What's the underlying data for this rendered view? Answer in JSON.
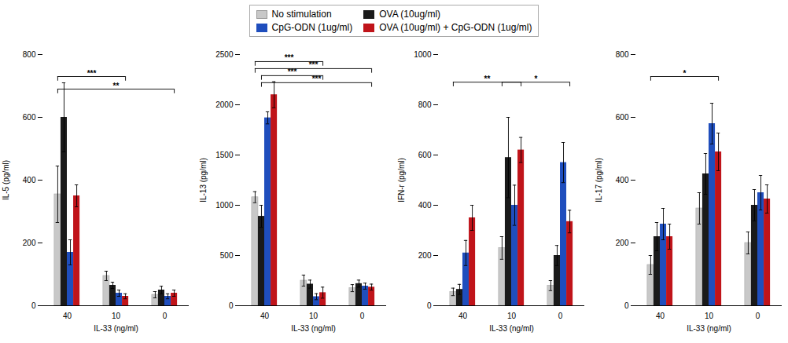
{
  "chart_data": [
    {
      "type": "bar",
      "xlabel": "IL-33 (ng/ml)",
      "ylabel": "IL-5 (pg/ml)",
      "categories": [
        "40",
        "10",
        "0"
      ],
      "series": [
        {
          "name": "No stimulation",
          "color": "#c8c8c8",
          "values": [
            355,
            95,
            35
          ],
          "errors": [
            90,
            15,
            10
          ]
        },
        {
          "name": "OVA (10ug/ml)",
          "color": "#1a1a1a",
          "values": [
            600,
            65,
            50
          ],
          "errors": [
            110,
            10,
            12
          ]
        },
        {
          "name": "CpG-ODN (1ug/ml)",
          "color": "#1f4ebd",
          "values": [
            170,
            40,
            30
          ],
          "errors": [
            40,
            10,
            8
          ]
        },
        {
          "name": "OVA (10ug/ml) + CpG-ODN (1ug/ml)",
          "color": "#c0141a",
          "values": [
            350,
            30,
            40
          ],
          "errors": [
            35,
            8,
            10
          ]
        }
      ],
      "ylim": [
        0,
        800
      ],
      "yticks": [
        0,
        200,
        400,
        600,
        800
      ],
      "legend": "upper center",
      "annotations": [
        {
          "text": "***",
          "y": 730,
          "from": {
            "category": "40",
            "series": "No stimulation"
          },
          "to": {
            "category": "10",
            "series": "OVA (10ug/ml) + CpG-ODN (1ug/ml)"
          }
        },
        {
          "text": "**",
          "y": 690,
          "from": {
            "category": "40",
            "series": "No stimulation"
          },
          "to": {
            "category": "0",
            "series": "OVA (10ug/ml) + CpG-ODN (1ug/ml)"
          }
        }
      ]
    },
    {
      "type": "bar",
      "xlabel": "IL-33 (ng/ml)",
      "ylabel": "IL-13 (pg/ml)",
      "categories": [
        "40",
        "10",
        "0"
      ],
      "series": [
        {
          "name": "No stimulation",
          "color": "#c8c8c8",
          "values": [
            1080,
            250,
            175
          ],
          "errors": [
            55,
            55,
            35
          ]
        },
        {
          "name": "OVA (10ug/ml)",
          "color": "#1a1a1a",
          "values": [
            890,
            215,
            220
          ],
          "errors": [
            110,
            40,
            35
          ]
        },
        {
          "name": "CpG-ODN (1ug/ml)",
          "color": "#1f4ebd",
          "values": [
            1870,
            90,
            195
          ],
          "errors": [
            60,
            30,
            30
          ]
        },
        {
          "name": "OVA (10ug/ml) + CpG-ODN (1ug/ml)",
          "color": "#c0141a",
          "values": [
            2100,
            130,
            185
          ],
          "errors": [
            130,
            55,
            30
          ]
        }
      ],
      "ylim": [
        0,
        2500
      ],
      "yticks": [
        0,
        500,
        1000,
        1500,
        2000,
        2500
      ],
      "legend": "upper center",
      "annotations": [
        {
          "text": "***",
          "y": 2430,
          "from": {
            "category": "40",
            "series": "No stimulation"
          },
          "to": {
            "category": "10",
            "series": "OVA (10ug/ml) + CpG-ODN (1ug/ml)"
          }
        },
        {
          "text": "***",
          "y": 2360,
          "from": {
            "category": "40",
            "series": "No stimulation"
          },
          "to": {
            "category": "0",
            "series": "OVA (10ug/ml) + CpG-ODN (1ug/ml)"
          }
        },
        {
          "text": "***",
          "y": 2290,
          "from": {
            "category": "40",
            "series": "OVA (10ug/ml)"
          },
          "to": {
            "category": "10",
            "series": "OVA (10ug/ml) + CpG-ODN (1ug/ml)"
          }
        },
        {
          "text": "***",
          "y": 2220,
          "from": {
            "category": "40",
            "series": "OVA (10ug/ml)"
          },
          "to": {
            "category": "0",
            "series": "OVA (10ug/ml) + CpG-ODN (1ug/ml)"
          }
        }
      ]
    },
    {
      "type": "bar",
      "xlabel": "IL-33 (ng/ml)",
      "ylabel": "IFN-r (pg/ml)",
      "categories": [
        "40",
        "10",
        "0"
      ],
      "series": [
        {
          "name": "No stimulation",
          "color": "#c8c8c8",
          "values": [
            55,
            230,
            80
          ],
          "errors": [
            15,
            45,
            20
          ]
        },
        {
          "name": "OVA (10ug/ml)",
          "color": "#1a1a1a",
          "values": [
            65,
            590,
            200
          ],
          "errors": [
            20,
            160,
            40
          ]
        },
        {
          "name": "CpG-ODN (1ug/ml)",
          "color": "#1f4ebd",
          "values": [
            210,
            400,
            570
          ],
          "errors": [
            50,
            80,
            80
          ]
        },
        {
          "name": "OVA (10ug/ml) + CpG-ODN (1ug/ml)",
          "color": "#c0141a",
          "values": [
            350,
            620,
            335
          ],
          "errors": [
            50,
            50,
            45
          ]
        }
      ],
      "ylim": [
        0,
        1000
      ],
      "yticks": [
        0,
        200,
        400,
        600,
        800,
        1000
      ],
      "legend": "upper center",
      "annotations": [
        {
          "text": "**",
          "y": 890,
          "from": {
            "category": "40",
            "series": "No stimulation"
          },
          "to": {
            "category": "10",
            "series": "OVA (10ug/ml) + CpG-ODN (1ug/ml)"
          }
        },
        {
          "text": "*",
          "y": 890,
          "from": {
            "category": "10",
            "series": "No stimulation"
          },
          "to": {
            "category": "0",
            "series": "OVA (10ug/ml) + CpG-ODN (1ug/ml)"
          }
        }
      ]
    },
    {
      "type": "bar",
      "xlabel": "IL-33 (ng/ml)",
      "ylabel": "IL-17 (pg/ml)",
      "categories": [
        "40",
        "10",
        "0"
      ],
      "series": [
        {
          "name": "No stimulation",
          "color": "#c8c8c8",
          "values": [
            130,
            310,
            200
          ],
          "errors": [
            30,
            50,
            35
          ]
        },
        {
          "name": "OVA (10ug/ml)",
          "color": "#1a1a1a",
          "values": [
            220,
            420,
            320
          ],
          "errors": [
            45,
            65,
            50
          ]
        },
        {
          "name": "CpG-ODN (1ug/ml)",
          "color": "#1f4ebd",
          "values": [
            260,
            580,
            360
          ],
          "errors": [
            50,
            65,
            55
          ]
        },
        {
          "name": "OVA (10ug/ml) + CpG-ODN (1ug/ml)",
          "color": "#c0141a",
          "values": [
            220,
            490,
            340
          ],
          "errors": [
            40,
            60,
            45
          ]
        }
      ],
      "ylim": [
        0,
        800
      ],
      "yticks": [
        0,
        200,
        400,
        600,
        800
      ],
      "legend": "upper center",
      "annotations": [
        {
          "text": "*",
          "y": 730,
          "from": {
            "category": "40",
            "series": "No stimulation"
          },
          "to": {
            "category": "10",
            "series": "OVA (10ug/ml) + CpG-ODN (1ug/ml)"
          }
        }
      ]
    }
  ]
}
